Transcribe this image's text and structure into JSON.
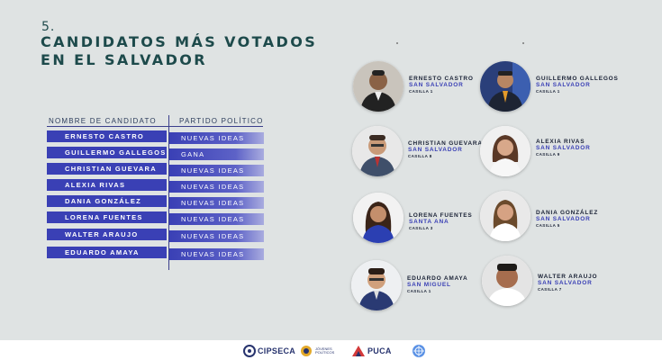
{
  "section_number": "5.",
  "title_line1": "CANDIDATOS MÁS VOTADOS",
  "title_line2": "EN EL SALVADOR",
  "table": {
    "header_name": "NOMBRE DE CANDIDATO",
    "header_party": "PARTIDO POLÍTICO",
    "rows": [
      {
        "name": "ERNESTO CASTRO",
        "party": "NUEVAS IDEAS"
      },
      {
        "name": "GUILLERMO GALLEGOS",
        "party": "GANA"
      },
      {
        "name": "CHRISTIAN GUEVARA",
        "party": "NUEVAS IDEAS"
      },
      {
        "name": "ALEXIA RIVAS",
        "party": "NUEVAS IDEAS"
      },
      {
        "name": "DANIA GONZÁLEZ",
        "party": "NUEVAS IDEAS"
      },
      {
        "name": "LORENA FUENTES",
        "party": "NUEVAS IDEAS"
      },
      {
        "name": "WALTER ARAUJO",
        "party": "NUEVAS IDEAS"
      },
      {
        "name": "EDUARDO AMAYA",
        "party": "NUEVAS IDEAS"
      }
    ]
  },
  "candidates": [
    {
      "name": "ERNESTO CASTRO",
      "dept": "SAN SALVADOR",
      "casilla": "CASILLA 1"
    },
    {
      "name": "GUILLERMO GALLEGOS",
      "dept": "SAN SALVADOR",
      "casilla": "CASILLA 1"
    },
    {
      "name": "CHRISTIAN GUEVARA",
      "dept": "SAN SALVADOR",
      "casilla": "CASILLA 8"
    },
    {
      "name": "ALEXIA RIVAS",
      "dept": "SAN SALVADOR",
      "casilla": "CASILLA 9"
    },
    {
      "name": "LORENA FUENTES",
      "dept": "SANTA ANA",
      "casilla": "CASILLA 3"
    },
    {
      "name": "DANIA GONZÁLEZ",
      "dept": "SAN SALVADOR",
      "casilla": "CASILLA 5"
    },
    {
      "name": "EDUARDO AMAYA",
      "dept": "SAN MIGUEL",
      "casilla": "CASILLA 1"
    },
    {
      "name": "WALTER ARAUJO",
      "dept": "SAN SALVADOR",
      "casilla": "CASILLA 7"
    }
  ],
  "footer": {
    "logo1": "CIPSECA",
    "logo2_line1": "JÓVENES",
    "logo2_line2": "POLÍTICOS",
    "logo3": "PUCA"
  }
}
